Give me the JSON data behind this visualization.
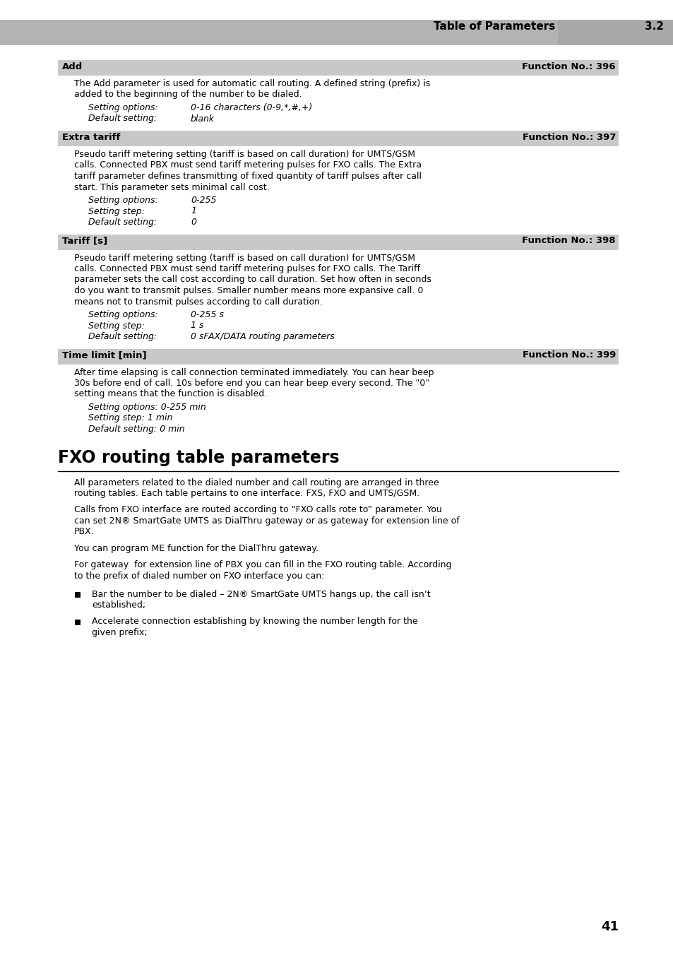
{
  "page_bg": "#ffffff",
  "header_bg": "#b3b3b3",
  "section_bg": "#c8c8c8",
  "divider_bg": "#a8a8a8",
  "header_title": "Table of Parameters",
  "header_number": "3.2",
  "sections": [
    {
      "title": "Add",
      "func_no": "Function No.: 396",
      "body": "The Add parameter is used for automatic call routing. A defined string (prefix) is\nadded to the beginning of the number to be dialed.",
      "settings": [
        {
          "label": "Setting options:",
          "value": "0-16 characters (0-9,*,#,+)"
        },
        {
          "label": "Default setting:",
          "value": "blank"
        }
      ]
    },
    {
      "title": "Extra tariff",
      "func_no": "Function No.: 397",
      "body": "Pseudo tariff metering setting (tariff is based on call duration) for UMTS/GSM\ncalls. Connected PBX must send tariff metering pulses for FXO calls. The Extra\ntariff parameter defines transmitting of fixed quantity of tariff pulses after call\nstart. This parameter sets minimal call cost.",
      "settings": [
        {
          "label": "Setting options:",
          "value": "0-255"
        },
        {
          "label": "Setting step:",
          "value": "1"
        },
        {
          "label": "Default setting:",
          "value": "0"
        }
      ]
    },
    {
      "title": "Tariff [s]",
      "func_no": "Function No.: 398",
      "body": "Pseudo tariff metering setting (tariff is based on call duration) for UMTS/GSM\ncalls. Connected PBX must send tariff metering pulses for FXO calls. The Tariff\nparameter sets the call cost according to call duration. Set how often in seconds\ndo you want to transmit pulses. Smaller number means more expansive call. 0\nmeans not to transmit pulses according to call duration.",
      "settings": [
        {
          "label": "Setting options:",
          "value": "0-255 s"
        },
        {
          "label": "Setting step:",
          "value": "1 s"
        },
        {
          "label": "Default setting:",
          "value": "0 sFAX/DATA routing parameters"
        }
      ]
    },
    {
      "title": "Time limit [min]",
      "func_no": "Function No.: 399",
      "body": "After time elapsing is call connection terminated immediately. You can hear beep\n30s before end of call. 10s before end you can hear beep every second. The \"0\"\nsetting means that the function is disabled.",
      "settings_inline": [
        "Setting options: 0-255 min",
        "Setting step: 1 min",
        "Default setting: 0 min"
      ]
    }
  ],
  "fxo_section": {
    "title": "FXO routing table parameters",
    "paragraphs": [
      "All parameters related to the dialed number and call routing are arranged in three\nrouting tables. Each table pertains to one interface: FXS, FXO and UMTS/GSM.",
      "Calls from FXO interface are routed according to “FXO calls rote to” parameter. You\ncan set 2N® SmartGate UMTS as DialThru gateway or as gateway for extension line of\nPBX.",
      "You can program ME function for the DialThru gateway.",
      "For gateway  for extension line of PBX you can fill in the FXO routing table. According\nto the prefix of dialed number on FXO interface you can:"
    ],
    "bullets": [
      "Bar the number to be dialed – 2N® SmartGate UMTS hangs up, the call isn’t\nestablished;",
      "Accelerate connection establishing by knowing the number length for the\ngiven prefix;"
    ]
  },
  "page_number": "41"
}
